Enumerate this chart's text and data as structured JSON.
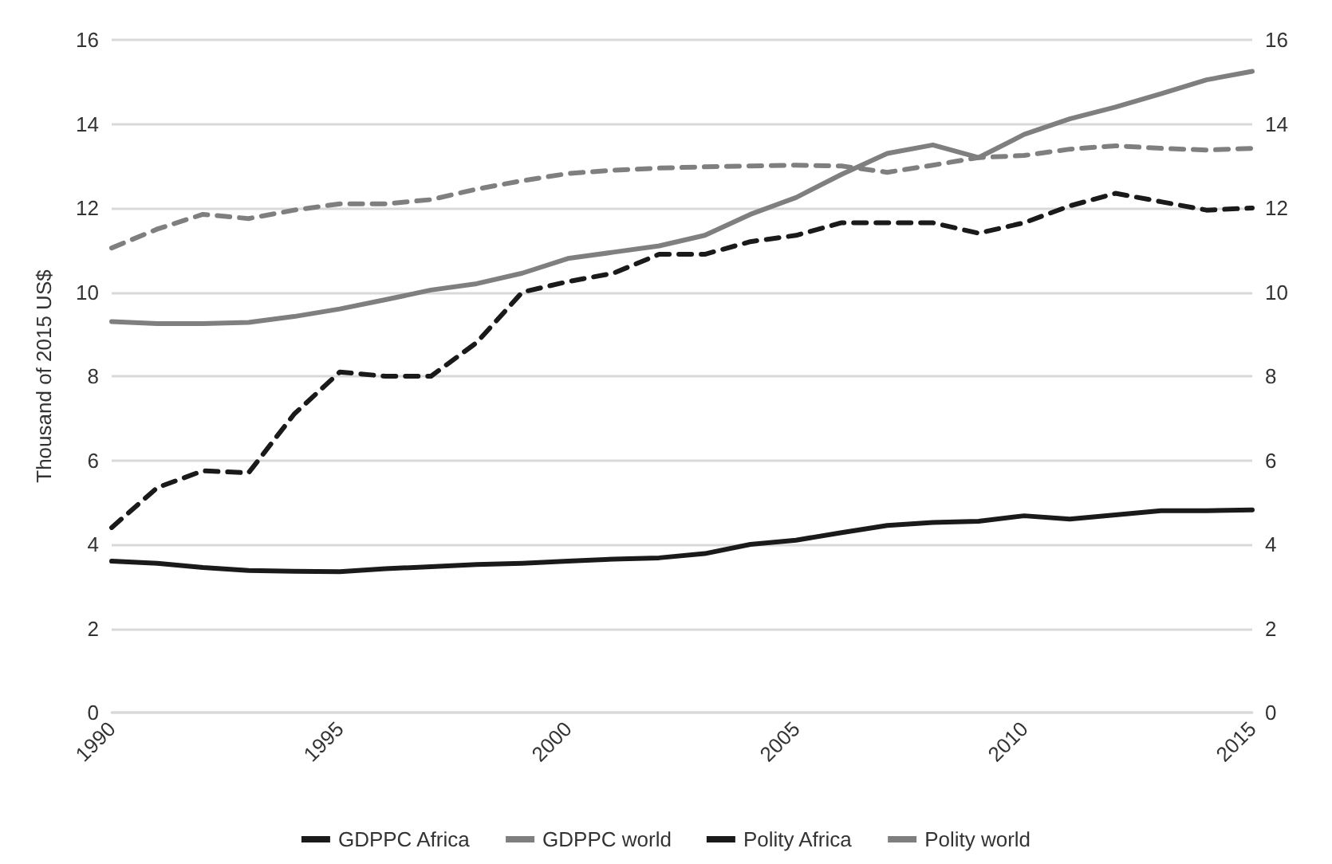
{
  "chart_data": {
    "type": "line",
    "ylabel": "Thousand of 2015 US$",
    "x": [
      1990,
      1991,
      1992,
      1993,
      1994,
      1995,
      1996,
      1997,
      1998,
      1999,
      2000,
      2001,
      2002,
      2003,
      2004,
      2005,
      2006,
      2007,
      2008,
      2009,
      2010,
      2011,
      2012,
      2013,
      2014,
      2015
    ],
    "xlim": [
      1990,
      2015
    ],
    "xticks": [
      1990,
      1995,
      2000,
      2005,
      2010,
      2015
    ],
    "ylim": [
      0,
      16
    ],
    "yticks": [
      0,
      2,
      4,
      6,
      8,
      10,
      12,
      14,
      16
    ],
    "y2lim": [
      0,
      16
    ],
    "y2ticks": [
      0,
      2,
      4,
      6,
      8,
      10,
      12,
      14,
      16
    ],
    "grid": "y",
    "legend": "bottom",
    "marker": "none",
    "series": [
      {
        "name": "GDPPC Africa",
        "color": "#1a1a1a",
        "line_style": "solid",
        "values": [
          3.6,
          3.55,
          3.45,
          3.38,
          3.36,
          3.35,
          3.42,
          3.47,
          3.52,
          3.55,
          3.6,
          3.65,
          3.68,
          3.78,
          4.0,
          4.1,
          4.28,
          4.45,
          4.52,
          4.55,
          4.68,
          4.6,
          4.7,
          4.8,
          4.8,
          4.82
        ]
      },
      {
        "name": "GDPPC world",
        "color": "#7f7f7f",
        "line_style": "solid",
        "values": [
          9.3,
          9.25,
          9.25,
          9.28,
          9.42,
          9.6,
          9.82,
          10.05,
          10.2,
          10.45,
          10.8,
          10.95,
          11.1,
          11.35,
          11.85,
          12.25,
          12.8,
          13.3,
          13.5,
          13.2,
          13.75,
          14.12,
          14.4,
          14.72,
          15.05,
          15.25
        ]
      },
      {
        "name": "Polity Africa",
        "color": "#1a1a1a",
        "line_style": "dashed",
        "values": [
          4.4,
          5.35,
          5.75,
          5.7,
          7.1,
          8.1,
          8.0,
          8.0,
          8.8,
          10.0,
          10.25,
          10.45,
          10.9,
          10.9,
          11.2,
          11.35,
          11.65,
          11.65,
          11.65,
          11.4,
          11.65,
          12.05,
          12.35,
          12.15,
          11.95,
          12.0
        ]
      },
      {
        "name": "Polity world",
        "color": "#7f7f7f",
        "line_style": "dashed",
        "values": [
          11.05,
          11.5,
          11.85,
          11.75,
          11.95,
          12.1,
          12.1,
          12.2,
          12.45,
          12.65,
          12.82,
          12.9,
          12.95,
          12.98,
          13.0,
          13.02,
          13.0,
          12.85,
          13.02,
          13.2,
          13.25,
          13.4,
          13.48,
          13.42,
          13.38,
          13.42
        ]
      }
    ]
  }
}
